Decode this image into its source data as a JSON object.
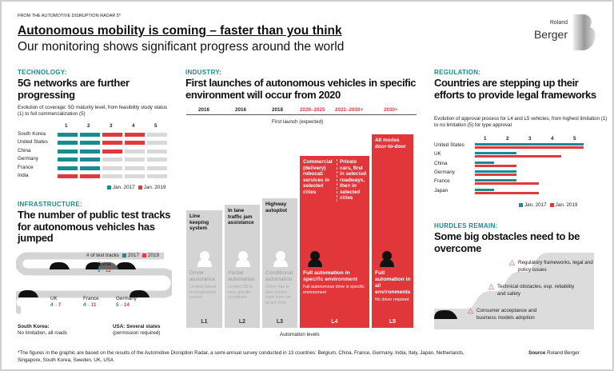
{
  "header": {
    "kicker": "FROM THE AUTOMOTIVE DISRUPTION RADAR 5*",
    "title": "Autonomous mobility is coming – faster than you think",
    "subtitle": "Our monitoring shows significant progress around the world",
    "logo_top": "Roland",
    "logo_bottom": "Berger"
  },
  "colors": {
    "teal": "#1a8a93",
    "red": "#e03a3e",
    "gray": "#d4d4d5"
  },
  "technology": {
    "kicker": "TECHNOLOGY:",
    "title": "5G networks are further progressing",
    "desc": "Evolution of coverage: 5G maturity level, from feasibility study status (1) to full commercialization (5)",
    "columns": [
      "1",
      "2",
      "3",
      "4",
      "5"
    ],
    "rows": [
      {
        "country": "South Korea",
        "jan2017": 2,
        "jan2019": 4
      },
      {
        "country": "United States",
        "jan2017": 2,
        "jan2019": 4
      },
      {
        "country": "China",
        "jan2017": 2,
        "jan2019": 3
      },
      {
        "country": "Germany",
        "jan2017": 2,
        "jan2019": 2
      },
      {
        "country": "France",
        "jan2017": 2,
        "jan2019": 2
      },
      {
        "country": "India",
        "jan2017": 0,
        "jan2019": 2
      }
    ],
    "legend": [
      "Jan. 2017",
      "Jan. 2019"
    ]
  },
  "infrastructure": {
    "kicker": "INFRASTRUCTURE:",
    "title": "The number of public test tracks for autonomous vehicles has jumped",
    "legend_label": "# of test tracks",
    "legend": [
      "2017",
      "2019"
    ],
    "countries": [
      {
        "name": "UK",
        "from": "4",
        "to": "7"
      },
      {
        "name": "France",
        "from": "4",
        "to": "11"
      },
      {
        "name": "Germany",
        "from": "5",
        "to": "14"
      },
      {
        "name": "China",
        "from": "5",
        "to": "12"
      }
    ],
    "south_korea": {
      "name": "South Korea:",
      "note": "No limitation, all roads"
    },
    "usa": {
      "name": "USA: Several states",
      "note": "(permission required)"
    }
  },
  "industry": {
    "kicker": "INDUSTRY:",
    "title": "First launches of autonomous vehicles in specific environment will occur from 2020",
    "axis_label": "First launch (expected)",
    "x_label": "Automation levels",
    "years": [
      "2016",
      "2016",
      "2018",
      "2020–2025",
      "2022–2030+",
      "2030+"
    ],
    "levels": [
      {
        "level": "L1",
        "top": "Line keeping system",
        "name": "Driver assistance",
        "desc": "Limited lateral or longitudinal control"
      },
      {
        "level": "L2",
        "top": "In lane traffic jam assistance",
        "name": "Partial automation",
        "desc": "Limited 3D in very specific conditions"
      },
      {
        "level": "L3",
        "top": "Highway autopilot",
        "name": "Conditional automation",
        "desc": "Driver has to take control back from car at any time"
      },
      {
        "level": "L4",
        "top": "Commercial (delivery) robocab services in selected cities",
        "top2": "Private cars, first in selected roadways, then in selected cities",
        "name": "Full automation in specific environment",
        "desc": "Full autonomous drive in specific environment"
      },
      {
        "level": "L5",
        "top": "All modes door-to-door",
        "name": "Full automation in all environments",
        "desc": "No driver required"
      }
    ]
  },
  "regulation": {
    "kicker": "REGULATION:",
    "title": "Countries are stepping up their efforts to provide legal frameworks",
    "desc": "Evolution of approval process for L4 and L5 vehicles, from highest limitation (1) to no limitation (5) for type approval",
    "columns": [
      "1",
      "2",
      "3",
      "4",
      "5"
    ],
    "rows": [
      {
        "country": "United States",
        "jan2017": 5,
        "jan2019": 5
      },
      {
        "country": "UK",
        "jan2017": 2,
        "jan2019": 4
      },
      {
        "country": "China",
        "jan2017": 1,
        "jan2019": 2
      },
      {
        "country": "Germany",
        "jan2017": 2,
        "jan2019": 2
      },
      {
        "country": "France",
        "jan2017": 2,
        "jan2019": 3
      },
      {
        "country": "Japan",
        "jan2017": 1,
        "jan2019": 3
      }
    ],
    "legend": [
      "Jan. 2017",
      "Jan. 2019"
    ]
  },
  "hurdles": {
    "kicker": "HURDLES REMAIN:",
    "title": "Some big obstacles need to be overcome",
    "items": [
      "Regulatory frameworks, legal and policy issues",
      "Technical obstacles, esp. reliability and safety",
      "Consumer acceptance and business models adoption"
    ]
  },
  "footer": {
    "note": "*The figures in the graphic are based on the results of the Automotive Disruption Radar, a semi-annual survey conducted in 13 countries: Belgium, China, France, Germany, India, Italy, Japan, Netherlands, Singapore, South Korea, Sweden, UK, USA",
    "source_label": "Source",
    "source": "Roland Berger"
  }
}
